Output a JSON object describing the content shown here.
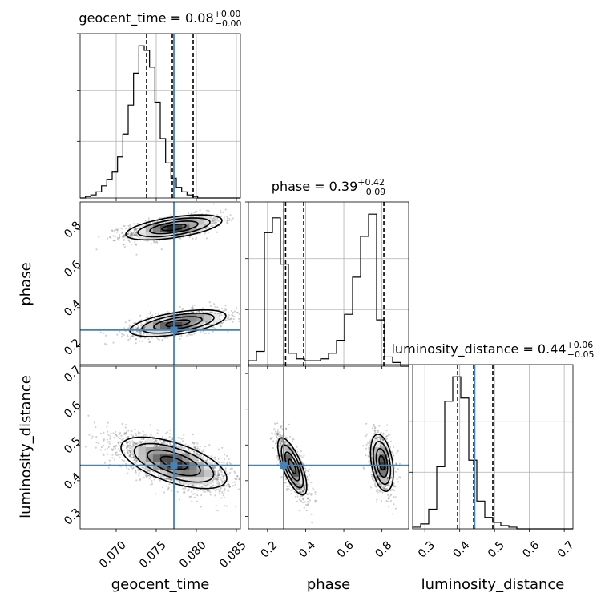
{
  "chart_data": {
    "type": "corner",
    "parameters": [
      "geocent_time",
      "phase",
      "luminosity_distance"
    ],
    "axis_labels": {
      "geocent_time": "geocent_time",
      "phase": "phase",
      "luminosity_distance": "luminosity_distance"
    },
    "ranges": {
      "geocent_time": [
        0.0655,
        0.0855
      ],
      "phase": [
        0.1,
        0.94
      ],
      "luminosity_distance": [
        0.265,
        0.725
      ]
    },
    "ticks": {
      "geocent_time": [
        "0.070",
        "0.075",
        "0.080",
        "0.085"
      ],
      "phase": [
        "0.2",
        "0.4",
        "0.6",
        "0.8"
      ],
      "luminosity_distance": [
        "0.3",
        "0.4",
        "0.5",
        "0.6",
        "0.7"
      ]
    },
    "tick_values": {
      "geocent_time": [
        0.07,
        0.075,
        0.08,
        0.085
      ],
      "phase": [
        0.2,
        0.4,
        0.6,
        0.8
      ],
      "luminosity_distance": [
        0.3,
        0.4,
        0.5,
        0.6,
        0.7
      ]
    },
    "titles": {
      "geocent_time": {
        "label": "geocent_time = 0.08",
        "plus": "+0.00",
        "minus": "−0.00"
      },
      "phase": {
        "label": "phase = 0.39",
        "plus": "+0.42",
        "minus": "−0.09"
      },
      "luminosity_distance": {
        "label": "luminosity_distance = 0.44",
        "plus": "+0.06",
        "minus": "−0.05"
      }
    },
    "truths": {
      "geocent_time": 0.0772,
      "phase": 0.285,
      "luminosity_distance": 0.443
    },
    "quantiles": {
      "geocent_time": [
        0.0738,
        0.077,
        0.0796
      ],
      "phase": [
        0.295,
        0.39,
        0.81
      ],
      "luminosity_distance": [
        0.394,
        0.44,
        0.495
      ]
    },
    "histograms": {
      "geocent_time": {
        "edges_start": 0.0655,
        "bin_width": 0.0006667,
        "counts": [
          0,
          1,
          2,
          4,
          8,
          12,
          17,
          27,
          42,
          61,
          82,
          100,
          97,
          86,
          63,
          39,
          23,
          13,
          7,
          4,
          2,
          1,
          0,
          0,
          0,
          0,
          0,
          0,
          0,
          0
        ]
      },
      "phase": {
        "edges_start": 0.1,
        "bin_width": 0.042,
        "counts": [
          3,
          8,
          72,
          80,
          55,
          7,
          4,
          3,
          3,
          4,
          7,
          14,
          28,
          48,
          70,
          82,
          25,
          5,
          2,
          0
        ]
      },
      "luminosity_distance": {
        "edges_start": 0.265,
        "bin_width": 0.023,
        "counts": [
          1,
          3,
          12,
          38,
          78,
          93,
          80,
          42,
          17,
          7,
          4,
          2,
          1,
          0,
          0,
          0,
          0,
          0,
          0,
          0
        ]
      }
    },
    "joint_modes": {
      "phase_vs_geocent_time": [
        {
          "x": 0.0772,
          "y": 0.81,
          "sx": 0.003,
          "sy": 0.032,
          "rho": 0.55,
          "weight": 0.5
        },
        {
          "x": 0.0777,
          "y": 0.32,
          "sx": 0.003,
          "sy": 0.034,
          "rho": 0.55,
          "weight": 0.5
        }
      ],
      "luminosity_distance_vs_geocent_time": [
        {
          "x": 0.0772,
          "y": 0.45,
          "sx": 0.0033,
          "sy": 0.036,
          "rho": -0.6,
          "weight": 1.0
        }
      ],
      "luminosity_distance_vs_phase": [
        {
          "x": 0.33,
          "y": 0.44,
          "sx": 0.038,
          "sy": 0.04,
          "rho": -0.72,
          "weight": 0.55
        },
        {
          "x": 0.8,
          "y": 0.45,
          "sx": 0.03,
          "sy": 0.04,
          "rho": -0.35,
          "weight": 0.45
        }
      ]
    },
    "contour_levels_sigma": [
      0.5,
      1.0,
      1.5,
      2.0
    ],
    "colors": {
      "truth": "#4682b4",
      "hist": "#000000",
      "grid": "#b0b0b0"
    },
    "grid": true
  }
}
